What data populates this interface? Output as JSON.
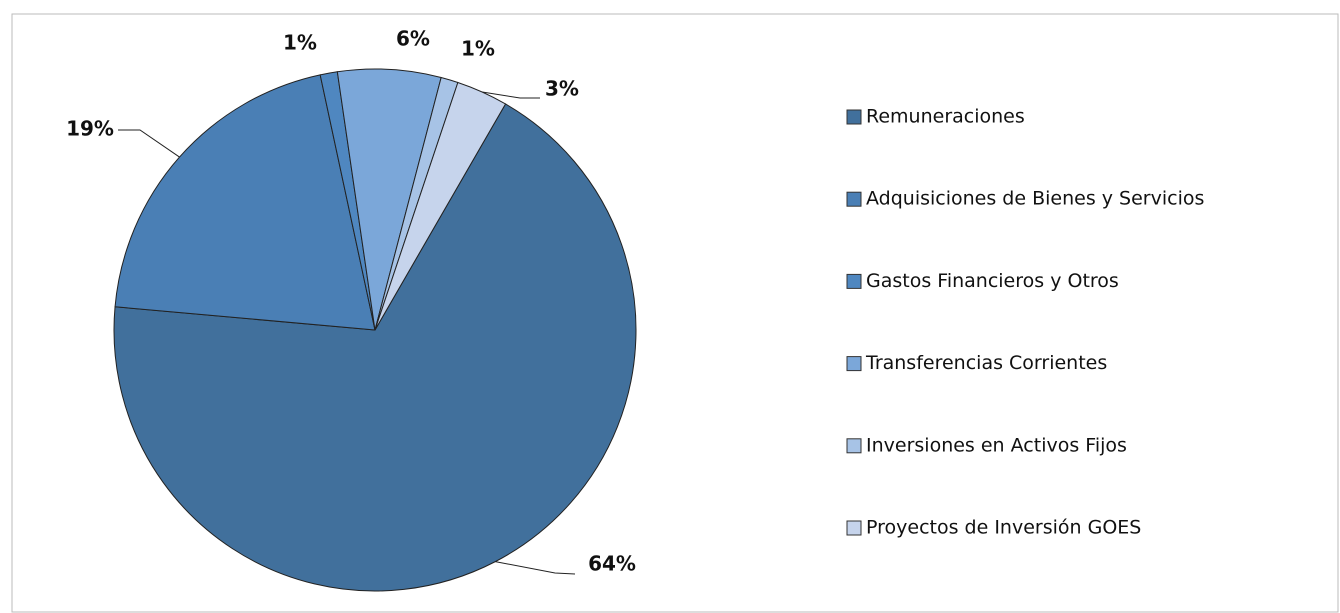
{
  "chart_data": {
    "type": "pie",
    "categories": [
      "Remuneraciones",
      "Adquisiciones de Bienes y Servicios",
      "Gastos Financieros y Otros",
      "Transferencias Corrientes",
      "Inversiones en Activos Fijos",
      "Proyectos de Inversión GOES"
    ],
    "values": [
      64,
      19,
      1,
      6,
      1,
      3
    ],
    "value_labels": [
      "64%",
      "19%",
      "1%",
      "6%",
      "1%",
      "3%"
    ],
    "colors": [
      "#41709c",
      "#4a7fb5",
      "#4f87c0",
      "#7ba7d9",
      "#a7c3e6",
      "#c6d4ec"
    ],
    "legend": "right"
  }
}
